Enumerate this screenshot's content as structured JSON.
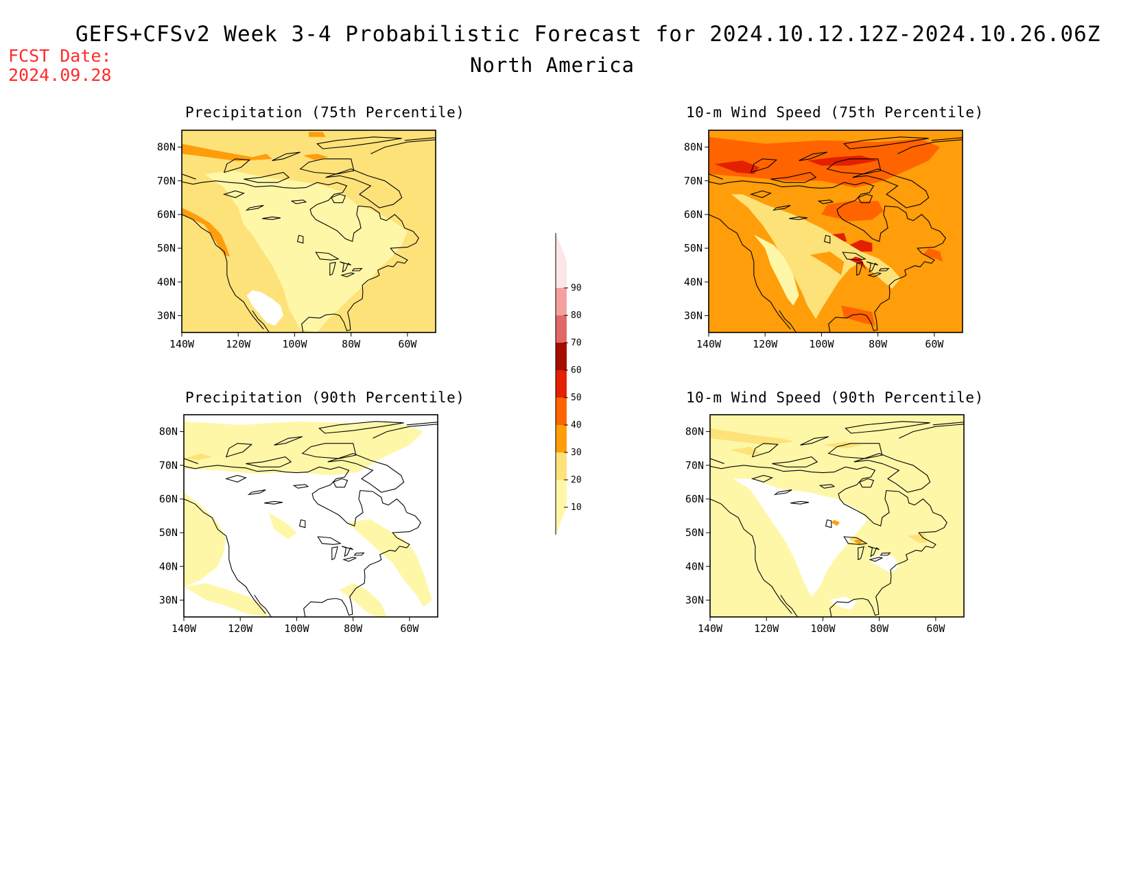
{
  "header": {
    "title": "GEFS+CFSv2 Week 3-4 Probabilistic Forecast for 2024.10.12.12Z-2024.10.26.06Z",
    "subtitle": "North America",
    "fcst_label": "FCST Date:",
    "fcst_date": "2024.09.28"
  },
  "colors": {
    "white": "#ffffff",
    "c10": "#fff7a8",
    "c20": "#fde27a",
    "c30": "#ff9d0a",
    "c40": "#ff6400",
    "c50": "#e32000",
    "c60": "#a50d00",
    "c70": "#e06868",
    "c80": "#f5a0a0",
    "c90": "#fde6e6"
  },
  "colorbar": {
    "levels": [
      "10",
      "20",
      "30",
      "40",
      "50",
      "60",
      "70",
      "80",
      "90"
    ]
  },
  "axes": {
    "lon_ticks": [
      "140W",
      "120W",
      "100W",
      "80W",
      "60W"
    ],
    "lat_ticks": [
      "80N",
      "70N",
      "60N",
      "50N",
      "40N",
      "30N"
    ]
  },
  "panels": [
    {
      "id": "precip75",
      "title": "Precipitation (75th Percentile)",
      "base": "c20"
    },
    {
      "id": "wind75",
      "title": "10-m Wind Speed (75th Percentile)",
      "base": "c30"
    },
    {
      "id": "precip90",
      "title": "Precipitation (90th Percentile)",
      "base": "white"
    },
    {
      "id": "wind90",
      "title": "10-m Wind Speed (90th Percentile)",
      "base": "c10"
    }
  ]
}
